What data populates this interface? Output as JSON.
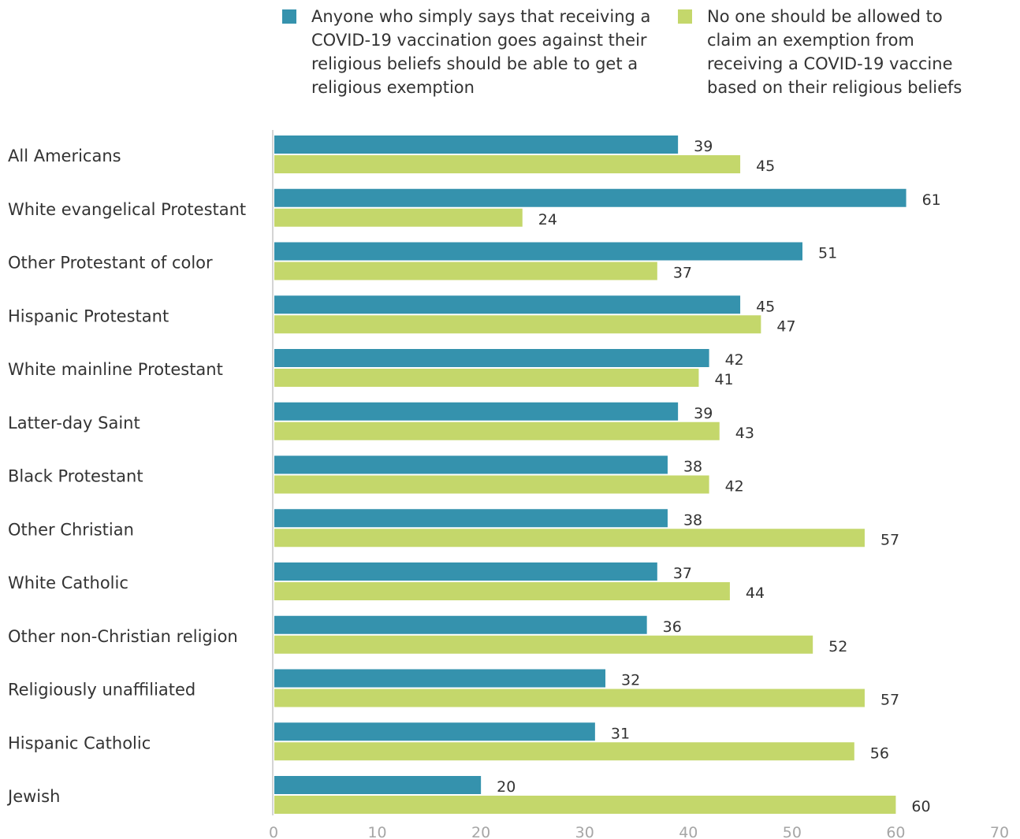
{
  "chart_data": {
    "type": "bar",
    "orientation": "horizontal",
    "categories": [
      "All Americans",
      "White evangelical Protestant",
      "Other Protestant of color",
      "Hispanic Protestant",
      "White mainline Protestant",
      "Latter-day Saint",
      "Black Protestant",
      "Other Christian",
      "White Catholic",
      "Other non-Christian religion",
      "Religiously unaffiliated",
      "Hispanic Catholic",
      "Jewish"
    ],
    "series": [
      {
        "name": "Anyone who simply says that receiving a COVID-19 vaccination goes against their religious beliefs should be able to get a religious exemption",
        "color": "#3592ad",
        "values": [
          39,
          61,
          51,
          45,
          42,
          39,
          38,
          38,
          37,
          36,
          32,
          31,
          20
        ]
      },
      {
        "name": "No one should be allowed to claim an exemption from receiving a COVID-19 vaccine based on their religious beliefs",
        "color": "#c4d76b",
        "values": [
          45,
          24,
          37,
          47,
          41,
          43,
          42,
          57,
          44,
          52,
          57,
          56,
          60
        ]
      }
    ],
    "xlim": [
      0,
      70
    ],
    "xticks": [
      0,
      10,
      20,
      30,
      40,
      50,
      60,
      70
    ],
    "grid": false,
    "legend_position": "top",
    "data_labels": true,
    "title": "",
    "xlabel": "",
    "ylabel": ""
  }
}
